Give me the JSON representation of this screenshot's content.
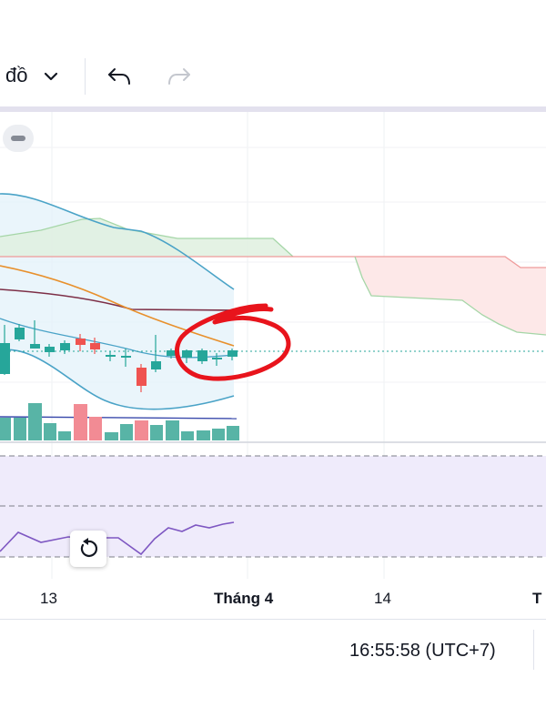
{
  "toolbar": {
    "chart_type_label": "đồ",
    "icons": [
      "chevron-down-icon",
      "undo-icon",
      "redo-icon"
    ]
  },
  "chart": {
    "collapse_icon": "minus-icon",
    "reset_icon": "reset-icon",
    "annotation": "red hand-drawn circle around latest candles",
    "colors": {
      "up": "#26a69a",
      "down": "#ef5350",
      "bollinger": "#4aa3c7",
      "ema": "#e8902c",
      "ma_long": "#7d2f47",
      "rsi": "#7e57c2",
      "cloud_bull": "#a5d6a7",
      "cloud_bear": "#ef9a9a",
      "annotation": "#e8141c"
    }
  },
  "time_axis": {
    "ticks": [
      "13",
      "Tháng 4",
      "14",
      "T"
    ]
  },
  "status": {
    "clock": "16:55:58 (UTC+7)"
  }
}
